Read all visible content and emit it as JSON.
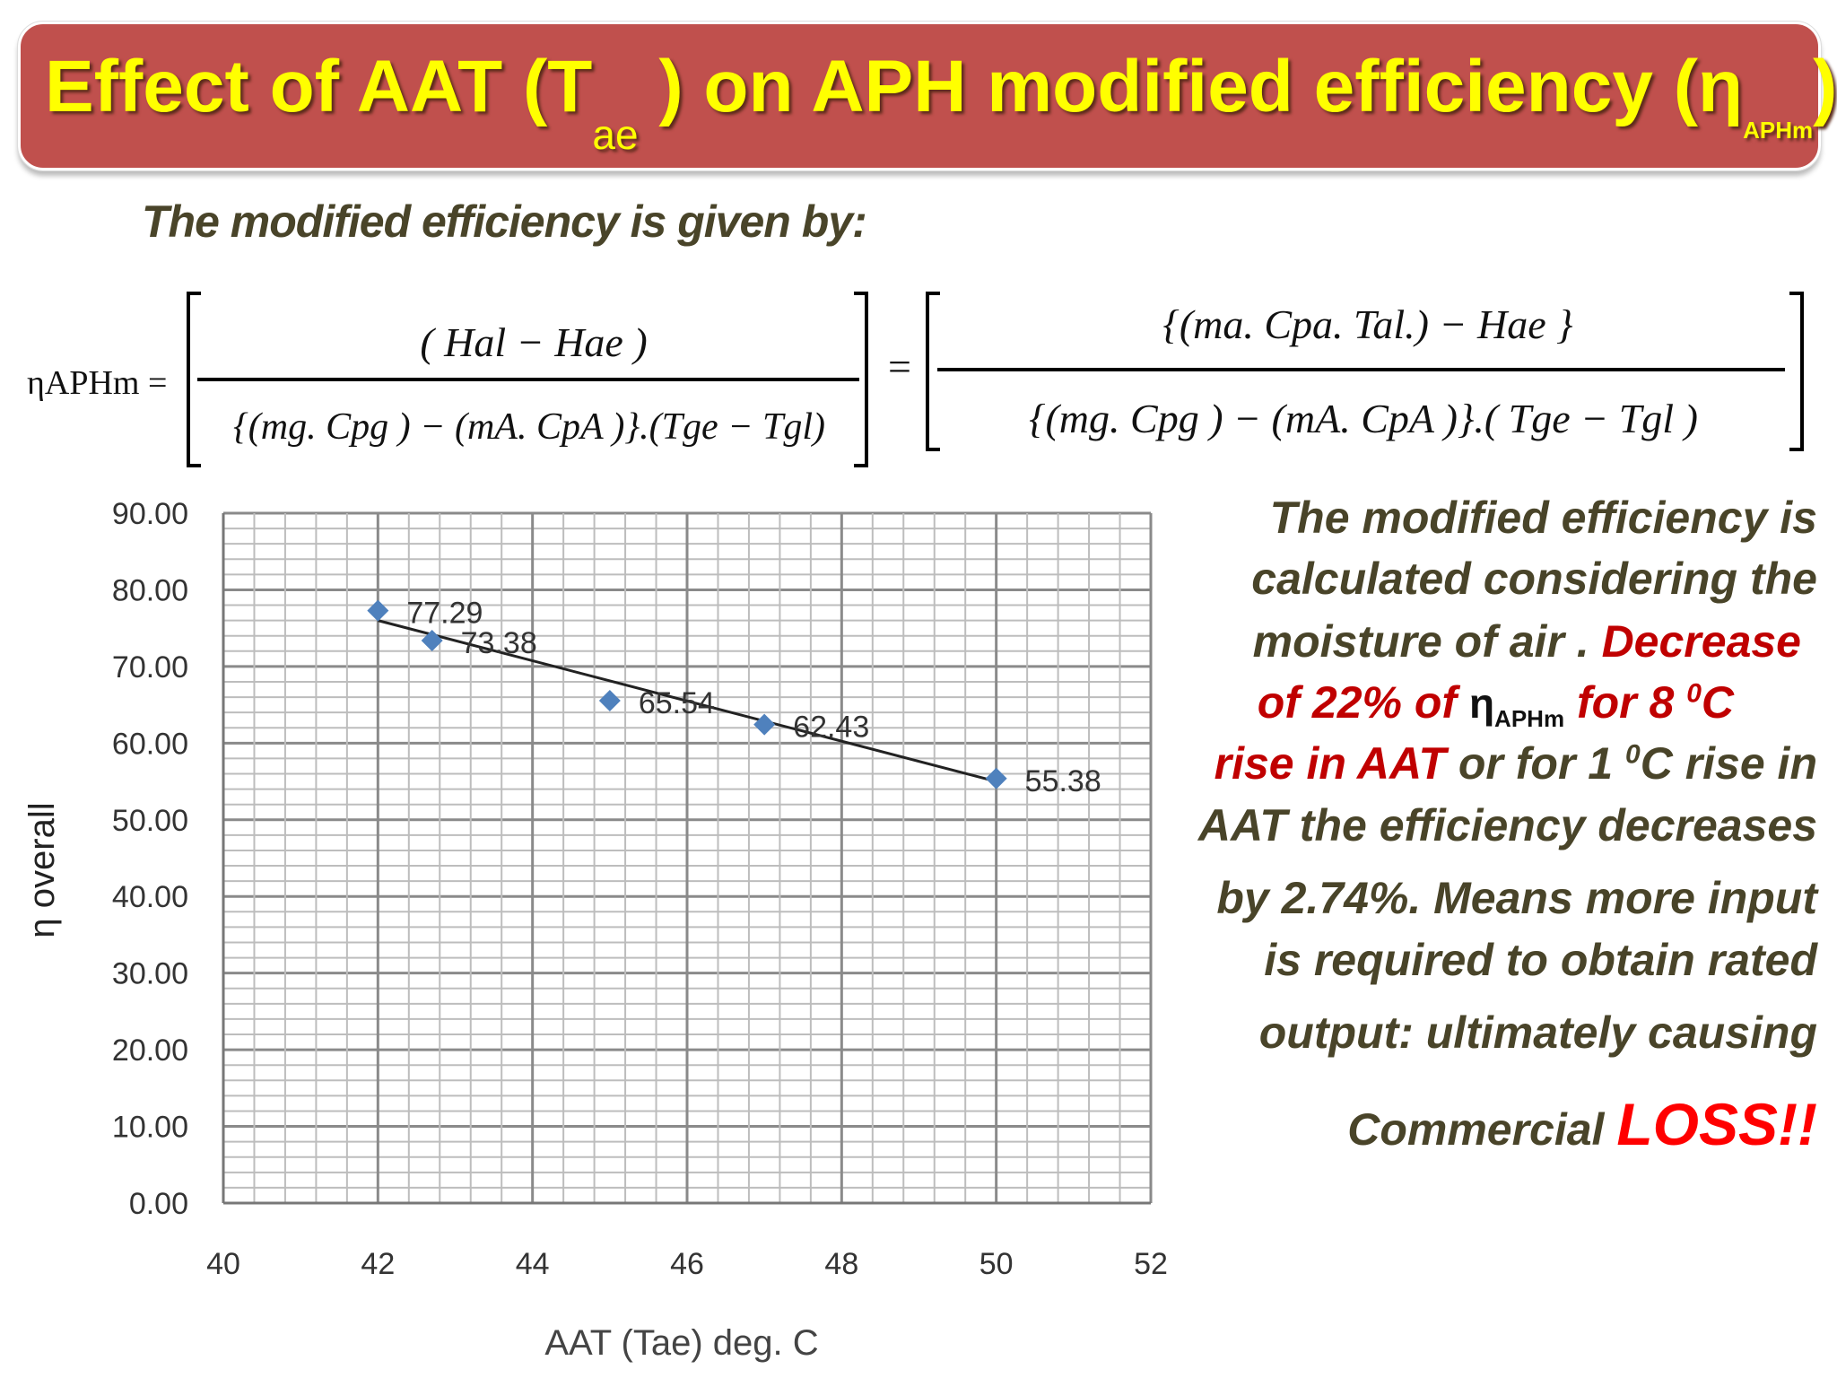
{
  "title": {
    "main": "Effect of AAT (T",
    "sub": "ae",
    "middle": " ) on APH modified efficiency  (η",
    "sub2": "APHm",
    "end": ")"
  },
  "intro": "The modified efficiency is given by:",
  "equation": {
    "lhs": "ηAPHm  =",
    "num1": "( Hal − Hae )",
    "den1": "{(mg. Cpg ) − (mA. CpA )}.(Tge − Tgl)",
    "equals": "=",
    "num2": "{(ma. Cpa.  Tal.) − Hae }",
    "den2": "{(mg. Cpg ) − (mA. CpA )}.( Tge − Tgl )"
  },
  "explanation": {
    "l1": "The modified efficiency is",
    "l2": "calculated considering the",
    "l3a": "moisture of air . ",
    "l3b": "Decrease",
    "l4a": "of 22% of ",
    "l4eta": "η",
    "l4sub": "APHm",
    "l4b": " for 8 ",
    "l4sup": "0",
    "l4c": "C",
    "l5a": "rise in AAT",
    "l5b": " or for 1 ",
    "l5sup": "0",
    "l5c": "C rise in",
    "l6": "AAT the efficiency decreases",
    "l7": "by 2.74%. Means more input",
    "l8": "is required to obtain rated",
    "l9": "output: ultimately causing",
    "l10a": "Commercial ",
    "l10b": "LOSS!!"
  },
  "colors": {
    "banner": "#c0504d",
    "title": "#ffff00",
    "text": "#494429",
    "highlight": "#c00000",
    "loss": "#ff0000",
    "marker": "#4f81bd"
  },
  "chart_data": {
    "type": "scatter",
    "xlabel": "AAT (Tae) deg. C",
    "ylabel": "η overall",
    "xlim": [
      40,
      52
    ],
    "ylim": [
      0,
      90
    ],
    "xticks": [
      "40",
      "42",
      "44",
      "46",
      "48",
      "50",
      "52"
    ],
    "yticks": [
      "0.00",
      "10.00",
      "20.00",
      "30.00",
      "40.00",
      "50.00",
      "60.00",
      "70.00",
      "80.00",
      "90.00"
    ],
    "grid": true,
    "x": [
      42,
      42.7,
      45,
      47,
      50
    ],
    "y": [
      77.29,
      73.38,
      65.54,
      62.43,
      55.38
    ],
    "labels": [
      "77.29",
      "73.38",
      "65.54",
      "62.43",
      "55.38"
    ],
    "trendline": {
      "type": "linear",
      "x": [
        42,
        50
      ],
      "y": [
        76.0,
        55.0
      ]
    }
  }
}
